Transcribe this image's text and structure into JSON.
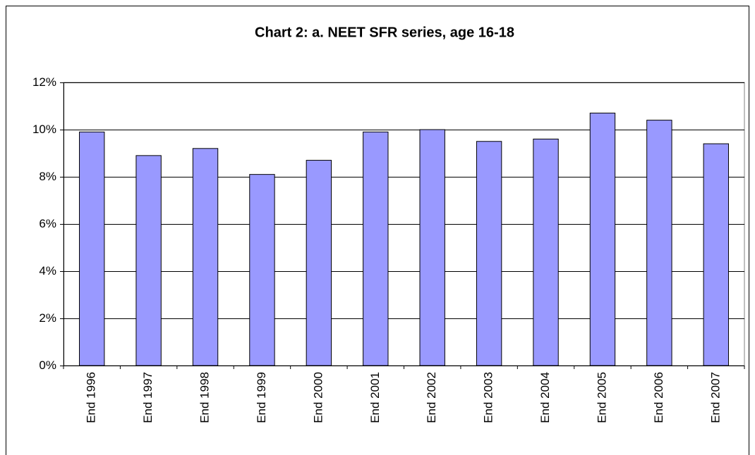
{
  "chart_data": {
    "type": "bar",
    "title": "Chart 2: a. NEET SFR series, age 16-18",
    "categories": [
      "End 1996",
      "End 1997",
      "End 1998",
      "End 1999",
      "End 2000",
      "End 2001",
      "End 2002",
      "End 2003",
      "End 2004",
      "End 2005",
      "End 2006",
      "End 2007"
    ],
    "values": [
      9.9,
      8.9,
      9.2,
      8.1,
      8.7,
      9.9,
      10.0,
      9.5,
      9.6,
      10.7,
      10.4,
      9.4
    ],
    "color": "#9999ff",
    "ylim": [
      0,
      12
    ],
    "yticks": [
      {
        "value": 0,
        "label": "0%"
      },
      {
        "value": 2,
        "label": "2%"
      },
      {
        "value": 4,
        "label": "4%"
      },
      {
        "value": 6,
        "label": "6%"
      },
      {
        "value": 8,
        "label": "8%"
      },
      {
        "value": 10,
        "label": "10%"
      },
      {
        "value": 12,
        "label": "12%"
      }
    ],
    "grid": true
  }
}
